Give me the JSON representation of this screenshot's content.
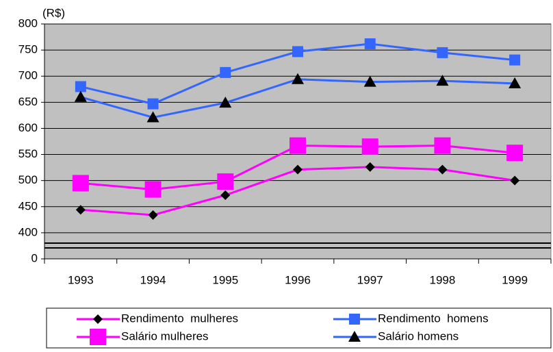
{
  "chart_data": {
    "type": "line",
    "y_label": "(R$)",
    "categories": [
      "1993",
      "1994",
      "1995",
      "1996",
      "1997",
      "1998",
      "1999"
    ],
    "series": [
      {
        "name": "Rendimento  mulheres",
        "color": "#ff00ff",
        "marker": "diamond",
        "marker_color": "#000000",
        "values": [
          444,
          434,
          472,
          521,
          526,
          521,
          500
        ]
      },
      {
        "name": "Rendimento  homens",
        "color": "#3366ff",
        "marker": "square",
        "marker_color": "#3366ff",
        "values": [
          680,
          647,
          707,
          747,
          762,
          745,
          731
        ]
      },
      {
        "name": "Salário mulheres",
        "color": "#ff00ff",
        "marker": "bigsquare",
        "marker_color": "#ff00ff",
        "values": [
          495,
          483,
          498,
          567,
          565,
          567,
          553
        ]
      },
      {
        "name": "Salário homens",
        "color": "#3366ff",
        "marker": "triangle",
        "marker_color": "#000000",
        "values": [
          660,
          621,
          649,
          694,
          689,
          691,
          686
        ]
      }
    ],
    "ylim": [
      0,
      800
    ],
    "yticks": [
      0,
      400,
      450,
      500,
      550,
      600,
      650,
      700,
      750,
      800
    ],
    "grid": true,
    "plot_background": "#c0c0c0"
  }
}
